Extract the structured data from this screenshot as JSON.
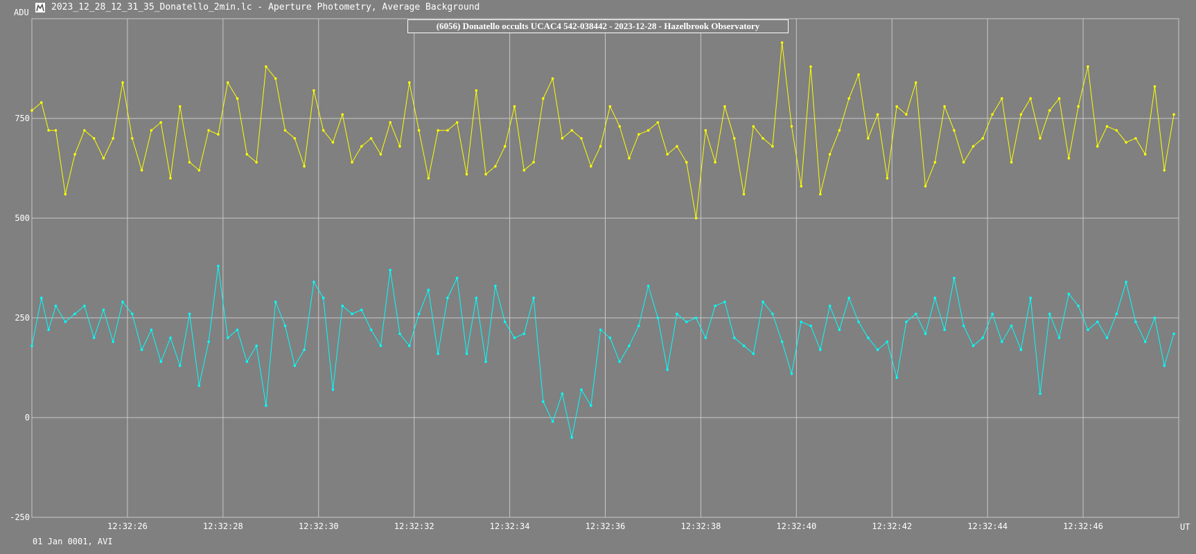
{
  "window": {
    "title": "2023_12_28_12_31_35_Donatello_2min.lc - Aperture Photometry, Average Background",
    "icon": "lightcurve-app-icon"
  },
  "footer": "01 Jan 0001, AVI",
  "colors": {
    "background": "#808080",
    "grid": "#c8c8c8",
    "target_series": "#ffff00",
    "comparison_series": "#00ffff"
  },
  "chart_data": {
    "type": "line",
    "title": "(6056) Donatello occults UCAC4 542-038442 - 2023-12-28 - Hazelbrook Observatory",
    "ylabel": "ADU",
    "xlabel": "UT",
    "ylim": [
      -250,
      1050
    ],
    "xlim": [
      "12:32:24.0",
      "12:32:48.0"
    ],
    "y_ticks": [
      -250,
      0,
      250,
      500,
      750
    ],
    "x_tick_labels": [
      "12:32:26",
      "12:32:28",
      "12:32:30",
      "12:32:32",
      "12:32:34",
      "12:32:36",
      "12:32:38",
      "12:32:40",
      "12:32:42",
      "12:32:44",
      "12:32:46"
    ],
    "grid": true,
    "series": [
      {
        "color": "#ffff00",
        "x_unit": "seconds after 12:32:24",
        "x": [
          0.0,
          0.2,
          0.35,
          0.5,
          0.7,
          0.9,
          1.1,
          1.3,
          1.5,
          1.7,
          1.9,
          2.1,
          2.3,
          2.5,
          2.7,
          2.9,
          3.1,
          3.3,
          3.5,
          3.7,
          3.9,
          4.1,
          4.3,
          4.5,
          4.7,
          4.9,
          5.1,
          5.3,
          5.5,
          5.7,
          5.9,
          6.1,
          6.3,
          6.5,
          6.7,
          6.9,
          7.1,
          7.3,
          7.5,
          7.7,
          7.9,
          8.1,
          8.3,
          8.5,
          8.7,
          8.9,
          9.1,
          9.3,
          9.5,
          9.7,
          9.9,
          10.1,
          10.3,
          10.5,
          10.7,
          10.9,
          11.1,
          11.3,
          11.5,
          11.7,
          11.9,
          12.1,
          12.3,
          12.5,
          12.7,
          12.9,
          13.1,
          13.3,
          13.5,
          13.7,
          13.9,
          14.1,
          14.3,
          14.5,
          14.7,
          14.9,
          15.1,
          15.3,
          15.5,
          15.7,
          15.9,
          16.1,
          16.3,
          16.5,
          16.7,
          16.9,
          17.1,
          17.3,
          17.5,
          17.7,
          17.9,
          18.1,
          18.3,
          18.5,
          18.7,
          18.9,
          19.1,
          19.3,
          19.5,
          19.7,
          19.9,
          20.1,
          20.3,
          20.5,
          20.7,
          20.9,
          21.1,
          21.3,
          21.5,
          21.7,
          21.9,
          22.1,
          22.3,
          22.5,
          22.7,
          22.9,
          23.1,
          23.3,
          23.5,
          23.7,
          23.9
        ],
        "values": [
          770,
          790,
          720,
          720,
          560,
          660,
          720,
          700,
          650,
          700,
          840,
          700,
          620,
          720,
          740,
          600,
          780,
          640,
          620,
          720,
          710,
          840,
          800,
          660,
          640,
          880,
          850,
          720,
          700,
          630,
          820,
          720,
          690,
          760,
          640,
          680,
          700,
          660,
          740,
          680,
          840,
          720,
          600,
          720,
          720,
          740,
          610,
          820,
          610,
          630,
          680,
          780,
          620,
          640,
          800,
          850,
          700,
          720,
          700,
          630,
          680,
          780,
          730,
          650,
          710,
          720,
          740,
          660,
          680,
          640,
          500,
          720,
          640,
          780,
          700,
          560,
          730,
          700,
          680,
          940,
          730,
          580,
          880,
          560,
          660,
          720,
          800,
          860,
          700,
          760,
          600,
          780,
          760,
          840,
          580,
          640,
          780,
          720,
          640,
          680,
          700,
          760,
          800,
          640,
          760,
          800,
          700,
          770,
          800,
          650,
          780,
          880,
          680,
          730,
          720,
          690,
          700,
          660,
          830,
          620,
          760
        ],
        "values_note": "read off the chart, approx."
      },
      {
        "color": "#00ffff",
        "x_unit": "seconds after 12:32:24",
        "x": [
          0.0,
          0.2,
          0.35,
          0.5,
          0.7,
          0.9,
          1.1,
          1.3,
          1.5,
          1.7,
          1.9,
          2.1,
          2.3,
          2.5,
          2.7,
          2.9,
          3.1,
          3.3,
          3.5,
          3.7,
          3.9,
          4.1,
          4.3,
          4.5,
          4.7,
          4.9,
          5.1,
          5.3,
          5.5,
          5.7,
          5.9,
          6.1,
          6.3,
          6.5,
          6.7,
          6.9,
          7.1,
          7.3,
          7.5,
          7.7,
          7.9,
          8.1,
          8.3,
          8.5,
          8.7,
          8.9,
          9.1,
          9.3,
          9.5,
          9.7,
          9.9,
          10.1,
          10.3,
          10.5,
          10.7,
          10.9,
          11.1,
          11.3,
          11.5,
          11.7,
          11.9,
          12.1,
          12.3,
          12.5,
          12.7,
          12.9,
          13.1,
          13.3,
          13.5,
          13.7,
          13.9,
          14.1,
          14.3,
          14.5,
          14.7,
          14.9,
          15.1,
          15.3,
          15.5,
          15.7,
          15.9,
          16.1,
          16.3,
          16.5,
          16.7,
          16.9,
          17.1,
          17.3,
          17.5,
          17.7,
          17.9,
          18.1,
          18.3,
          18.5,
          18.7,
          18.9,
          19.1,
          19.3,
          19.5,
          19.7,
          19.9,
          20.1,
          20.3,
          20.5,
          20.7,
          20.9,
          21.1,
          21.3,
          21.5,
          21.7,
          21.9,
          22.1,
          22.3,
          22.5,
          22.7,
          22.9,
          23.1,
          23.3,
          23.5,
          23.7,
          23.9
        ],
        "values": [
          180,
          300,
          220,
          280,
          240,
          260,
          280,
          200,
          270,
          190,
          290,
          260,
          170,
          220,
          140,
          200,
          130,
          260,
          80,
          190,
          380,
          200,
          220,
          140,
          180,
          30,
          290,
          230,
          130,
          170,
          340,
          300,
          70,
          280,
          260,
          270,
          220,
          180,
          370,
          210,
          180,
          260,
          320,
          160,
          300,
          350,
          160,
          300,
          140,
          330,
          240,
          200,
          210,
          300,
          40,
          -10,
          60,
          -50,
          70,
          30,
          220,
          200,
          140,
          180,
          230,
          330,
          250,
          120,
          260,
          240,
          250,
          200,
          280,
          290,
          200,
          180,
          160,
          290,
          260,
          190,
          110,
          240,
          230,
          170,
          280,
          220,
          300,
          240,
          200,
          170,
          190,
          100,
          240,
          260,
          210,
          300,
          220,
          350,
          230,
          180,
          200,
          260,
          190,
          230,
          170,
          300,
          60,
          260,
          200,
          310,
          280,
          220,
          240,
          200,
          260,
          340,
          240,
          190,
          250,
          130,
          210
        ],
        "values_note": "read off the chart, approx."
      }
    ]
  }
}
